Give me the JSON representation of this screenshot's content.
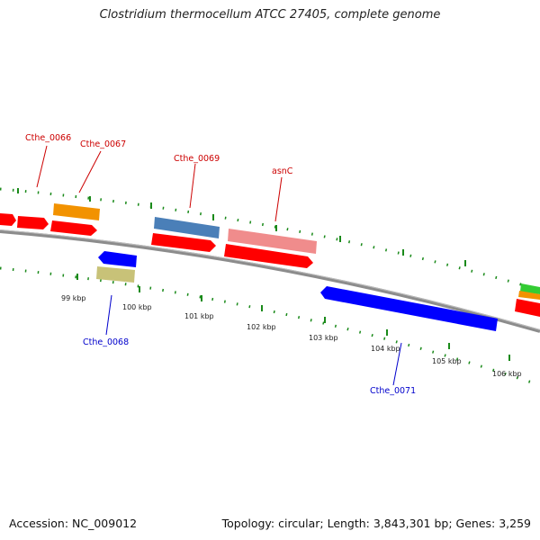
{
  "title": "Clostridium thermocellum ATCC 27405, complete genome",
  "accession_text": "Accession: NC_009012",
  "topology_text": "Topology: circular; Length: 3,843,301 bp; Genes: 3,259",
  "scale_labels": [
    "99 kbp",
    "100 kbp",
    "101 kbp",
    "102 kbp",
    "103 kbp",
    "104 kbp",
    "105 kbp",
    "106 kbp"
  ],
  "gene_labels": {
    "cthe_0066": "Cthe_0066",
    "cthe_0067": "Cthe_0067",
    "cthe_0068": "Cthe_0068",
    "cthe_0069": "Cthe_0069",
    "asnc": "asnC",
    "cthe_0071": "Cthe_0071"
  },
  "colors": {
    "backbone": "#888888",
    "tick": "#1a8a1a",
    "forward_cds": "#ff0000",
    "reverse_cds": "#0000ff",
    "label_forward": "#cc0000",
    "label_reverse": "#0000cc",
    "orange": "#f29200",
    "steelblue": "#4a7fb8",
    "pink": "#f08c8c",
    "khaki": "#c8c278",
    "green": "#33cc33"
  }
}
